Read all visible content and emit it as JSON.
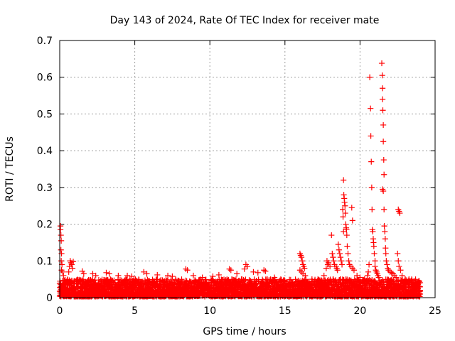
{
  "chart_data": {
    "type": "scatter",
    "title": "Day 143 of 2024, Rate Of TEC Index for receiver mate",
    "xlabel": "GPS time / hours",
    "ylabel": "ROTI / TECUs",
    "xlim": [
      0,
      25
    ],
    "ylim": [
      0,
      0.7
    ],
    "xticks": [
      "0",
      "5",
      "10",
      "15",
      "20",
      "25"
    ],
    "yticks": [
      "0",
      "0.1",
      "0.2",
      "0.3",
      "0.4",
      "0.5",
      "0.6",
      "0.7"
    ],
    "grid": true,
    "marker": "+",
    "color": "#ff0000",
    "background_noise": {
      "x_range": [
        0,
        24
      ],
      "y_range": [
        0.003,
        0.05
      ],
      "description": "dense band of ROTI values between ~0.003 and ~0.05 TECU/min across the whole day"
    },
    "series": [
      {
        "name": "ROTI",
        "points": [
          [
            0.05,
            0.195
          ],
          [
            0.05,
            0.185
          ],
          [
            0.08,
            0.17
          ],
          [
            0.1,
            0.155
          ],
          [
            0.08,
            0.13
          ],
          [
            0.12,
            0.12
          ],
          [
            0.1,
            0.1
          ],
          [
            0.15,
            0.09
          ],
          [
            0.12,
            0.075
          ],
          [
            0.2,
            0.07
          ],
          [
            0.25,
            0.06
          ],
          [
            0.05,
            0.04
          ],
          [
            0.7,
            0.1
          ],
          [
            0.75,
            0.095
          ],
          [
            0.8,
            0.09
          ],
          [
            0.65,
            0.085
          ],
          [
            0.9,
            0.098
          ],
          [
            0.85,
            0.08
          ],
          [
            0.6,
            0.07
          ],
          [
            1.5,
            0.072
          ],
          [
            1.6,
            0.065
          ],
          [
            2.2,
            0.065
          ],
          [
            2.4,
            0.06
          ],
          [
            3.1,
            0.068
          ],
          [
            3.3,
            0.065
          ],
          [
            3.9,
            0.06
          ],
          [
            4.5,
            0.06
          ],
          [
            4.8,
            0.058
          ],
          [
            5.6,
            0.07
          ],
          [
            5.8,
            0.065
          ],
          [
            6.5,
            0.062
          ],
          [
            7.2,
            0.06
          ],
          [
            7.5,
            0.058
          ],
          [
            8.4,
            0.078
          ],
          [
            8.5,
            0.075
          ],
          [
            8.9,
            0.06
          ],
          [
            9.5,
            0.055
          ],
          [
            10.2,
            0.058
          ],
          [
            10.6,
            0.062
          ],
          [
            11.3,
            0.078
          ],
          [
            11.4,
            0.075
          ],
          [
            11.8,
            0.065
          ],
          [
            12.4,
            0.09
          ],
          [
            12.5,
            0.085
          ],
          [
            12.3,
            0.078
          ],
          [
            12.9,
            0.07
          ],
          [
            13.2,
            0.068
          ],
          [
            13.6,
            0.075
          ],
          [
            13.7,
            0.072
          ],
          [
            14.3,
            0.055
          ],
          [
            15.0,
            0.045
          ],
          [
            16.0,
            0.12
          ],
          [
            16.05,
            0.115
          ],
          [
            16.1,
            0.11
          ],
          [
            16.15,
            0.1
          ],
          [
            16.2,
            0.09
          ],
          [
            16.25,
            0.085
          ],
          [
            16.3,
            0.08
          ],
          [
            16.0,
            0.075
          ],
          [
            16.1,
            0.07
          ],
          [
            16.2,
            0.065
          ],
          [
            16.35,
            0.06
          ],
          [
            16.8,
            0.05
          ],
          [
            17.2,
            0.05
          ],
          [
            17.6,
            0.06
          ],
          [
            17.75,
            0.08
          ],
          [
            17.8,
            0.1
          ],
          [
            17.85,
            0.09
          ],
          [
            17.9,
            0.095
          ],
          [
            18.0,
            0.085
          ],
          [
            18.1,
            0.17
          ],
          [
            18.15,
            0.12
          ],
          [
            18.2,
            0.11
          ],
          [
            18.25,
            0.1
          ],
          [
            18.3,
            0.09
          ],
          [
            18.4,
            0.085
          ],
          [
            18.45,
            0.08
          ],
          [
            18.5,
            0.075
          ],
          [
            18.55,
            0.145
          ],
          [
            18.6,
            0.13
          ],
          [
            18.65,
            0.12
          ],
          [
            18.7,
            0.11
          ],
          [
            18.75,
            0.1
          ],
          [
            18.8,
            0.09
          ],
          [
            18.85,
            0.24
          ],
          [
            18.87,
            0.22
          ],
          [
            18.9,
            0.18
          ],
          [
            18.9,
            0.32
          ],
          [
            18.92,
            0.28
          ],
          [
            18.95,
            0.27
          ],
          [
            18.97,
            0.26
          ],
          [
            19.0,
            0.25
          ],
          [
            19.02,
            0.23
          ],
          [
            19.05,
            0.2
          ],
          [
            19.08,
            0.19
          ],
          [
            19.1,
            0.185
          ],
          [
            19.12,
            0.17
          ],
          [
            19.15,
            0.14
          ],
          [
            19.2,
            0.12
          ],
          [
            19.25,
            0.1
          ],
          [
            19.3,
            0.09
          ],
          [
            19.4,
            0.085
          ],
          [
            19.45,
            0.245
          ],
          [
            19.5,
            0.21
          ],
          [
            19.5,
            0.08
          ],
          [
            19.6,
            0.075
          ],
          [
            19.8,
            0.06
          ],
          [
            20.0,
            0.055
          ],
          [
            20.3,
            0.05
          ],
          [
            20.5,
            0.06
          ],
          [
            20.55,
            0.07
          ],
          [
            20.6,
            0.09
          ],
          [
            20.65,
            0.6
          ],
          [
            20.7,
            0.515
          ],
          [
            20.72,
            0.44
          ],
          [
            20.75,
            0.37
          ],
          [
            20.78,
            0.3
          ],
          [
            20.8,
            0.24
          ],
          [
            20.82,
            0.185
          ],
          [
            20.85,
            0.18
          ],
          [
            20.88,
            0.16
          ],
          [
            20.9,
            0.15
          ],
          [
            20.92,
            0.14
          ],
          [
            20.95,
            0.12
          ],
          [
            21.0,
            0.1
          ],
          [
            21.0,
            0.085
          ],
          [
            21.05,
            0.075
          ],
          [
            21.1,
            0.07
          ],
          [
            21.15,
            0.065
          ],
          [
            21.2,
            0.06
          ],
          [
            21.25,
            0.055
          ],
          [
            21.45,
            0.638
          ],
          [
            21.48,
            0.605
          ],
          [
            21.5,
            0.57
          ],
          [
            21.5,
            0.54
          ],
          [
            21.52,
            0.51
          ],
          [
            21.55,
            0.47
          ],
          [
            21.55,
            0.425
          ],
          [
            21.58,
            0.375
          ],
          [
            21.6,
            0.335
          ],
          [
            21.5,
            0.295
          ],
          [
            21.55,
            0.29
          ],
          [
            21.6,
            0.24
          ],
          [
            21.62,
            0.195
          ],
          [
            21.65,
            0.18
          ],
          [
            21.68,
            0.16
          ],
          [
            21.7,
            0.135
          ],
          [
            21.72,
            0.12
          ],
          [
            21.75,
            0.1
          ],
          [
            21.8,
            0.09
          ],
          [
            21.85,
            0.08
          ],
          [
            21.9,
            0.075
          ],
          [
            22.0,
            0.07
          ],
          [
            22.1,
            0.068
          ],
          [
            22.2,
            0.065
          ],
          [
            22.3,
            0.06
          ],
          [
            22.4,
            0.055
          ],
          [
            22.5,
            0.12
          ],
          [
            22.55,
            0.1
          ],
          [
            22.6,
            0.085
          ],
          [
            22.7,
            0.075
          ],
          [
            22.55,
            0.24
          ],
          [
            22.6,
            0.235
          ],
          [
            22.65,
            0.23
          ],
          [
            22.8,
            0.06
          ],
          [
            23.0,
            0.05
          ],
          [
            23.3,
            0.045
          ],
          [
            23.6,
            0.04
          ],
          [
            23.8,
            0.03
          ],
          [
            24.0,
            0.02
          ]
        ]
      }
    ]
  }
}
